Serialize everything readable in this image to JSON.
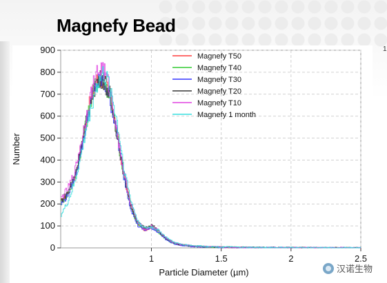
{
  "slide": {
    "title": "Magnefy Bead",
    "page_number": "1",
    "watermark": "汉诺生物"
  },
  "chart_data": {
    "type": "line",
    "title": "",
    "xlabel": "Particle Diameter (µm)",
    "ylabel": "Number",
    "xlim": [
      0.35,
      2.5
    ],
    "ylim": [
      0,
      900
    ],
    "x_ticks": [
      1,
      1.5,
      2,
      2.5
    ],
    "x_tick_labels": [
      "1",
      "1.5",
      "2",
      "2.5"
    ],
    "y_ticks": [
      0,
      100,
      200,
      300,
      400,
      500,
      600,
      700,
      800,
      900
    ],
    "y_tick_labels": [
      "0",
      "100",
      "200",
      "300",
      "400",
      "500",
      "600",
      "700",
      "800",
      "900"
    ],
    "grid": true,
    "legend_position": "top-center",
    "x": [
      0.35,
      0.4,
      0.45,
      0.5,
      0.55,
      0.6,
      0.65,
      0.7,
      0.75,
      0.8,
      0.85,
      0.9,
      0.95,
      1.0,
      1.05,
      1.1,
      1.15,
      1.2,
      1.3,
      1.4,
      1.5,
      1.7,
      1.9,
      2.1,
      2.3,
      2.5
    ],
    "series": [
      {
        "name": "Magnefy T50",
        "color": "#ff3b3b",
        "values": [
          210,
          250,
          330,
          480,
          640,
          760,
          770,
          700,
          530,
          330,
          190,
          110,
          80,
          95,
          75,
          45,
          25,
          15,
          8,
          5,
          3,
          2,
          1,
          1,
          0,
          0
        ]
      },
      {
        "name": "Magnefy T40",
        "color": "#33cc33",
        "values": [
          205,
          245,
          320,
          470,
          630,
          750,
          780,
          690,
          520,
          320,
          185,
          105,
          85,
          100,
          70,
          40,
          22,
          14,
          7,
          4,
          3,
          2,
          1,
          0,
          0,
          0
        ]
      },
      {
        "name": "Magnefy T30",
        "color": "#3333ff",
        "values": [
          200,
          240,
          325,
          465,
          625,
          745,
          765,
          685,
          515,
          325,
          180,
          100,
          80,
          90,
          70,
          40,
          20,
          12,
          6,
          4,
          2,
          1,
          1,
          0,
          0,
          0
        ]
      },
      {
        "name": "Magnefy T20",
        "color": "#333333",
        "values": [
          215,
          255,
          335,
          475,
          635,
          755,
          775,
          695,
          525,
          335,
          195,
          115,
          90,
          105,
          75,
          45,
          25,
          15,
          8,
          5,
          3,
          2,
          1,
          1,
          0,
          0
        ]
      },
      {
        "name": "Magnefy T10",
        "color": "#e040e0",
        "values": [
          225,
          270,
          350,
          500,
          660,
          790,
          820,
          720,
          540,
          340,
          200,
          115,
          85,
          100,
          78,
          46,
          26,
          16,
          9,
          5,
          3,
          2,
          1,
          1,
          0,
          0
        ]
      },
      {
        "name": "Magnefy 1 month",
        "color": "#33dddd",
        "values": [
          150,
          210,
          300,
          440,
          600,
          730,
          790,
          740,
          580,
          370,
          215,
          120,
          90,
          95,
          80,
          50,
          28,
          18,
          10,
          6,
          4,
          2,
          1,
          1,
          0,
          0
        ]
      }
    ]
  }
}
